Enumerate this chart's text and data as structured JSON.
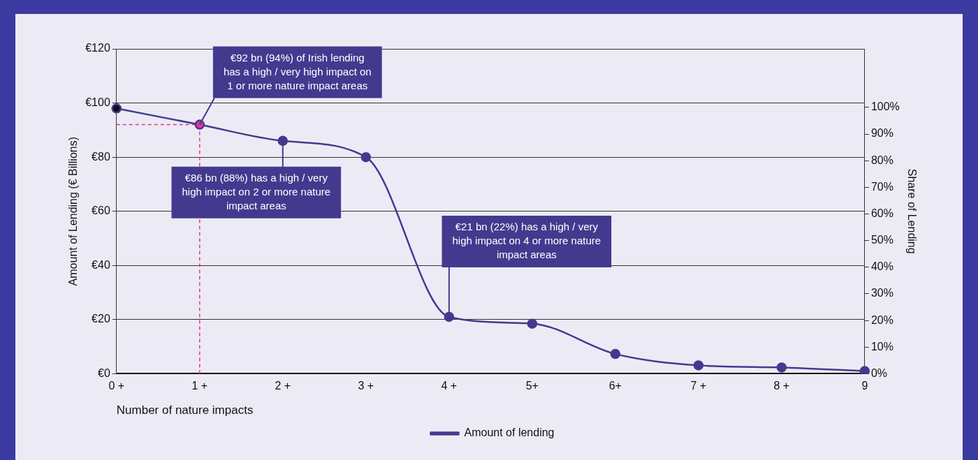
{
  "chart_data": {
    "type": "line",
    "xlabel": "Number of nature impacts",
    "ylabel": "Amount of Lending (€ Billions)",
    "y2label": "Share of Lending",
    "categories": [
      "0 +",
      "1 +",
      "2 +",
      "3 +",
      "4 +",
      "5+",
      "6+",
      "7 +",
      "8 +",
      "9"
    ],
    "series": [
      {
        "name": "Amount of lending",
        "color": "#433a8f",
        "colors": [
          "#111111",
          "#e8348a",
          "#433a8f",
          "#433a8f",
          "#433a8f",
          "#433a8f",
          "#433a8f",
          "#433a8f",
          "#433a8f",
          "#433a8f"
        ],
        "values": [
          98,
          92,
          86,
          80,
          21,
          18.5,
          7.3,
          3.1,
          2.3,
          1
        ]
      }
    ],
    "ylim": [
      0,
      120
    ],
    "yticks": [
      {
        "value": 0,
        "label": "€0"
      },
      {
        "value": 20,
        "label": "€20"
      },
      {
        "value": 40,
        "label": "€40"
      },
      {
        "value": 60,
        "label": "€60"
      },
      {
        "value": 80,
        "label": "€80"
      },
      {
        "value": 100,
        "label": "€100"
      },
      {
        "value": 120,
        "label": "€120"
      }
    ],
    "y2lim": [
      0,
      122
    ],
    "y2ticks": [
      {
        "value": 0,
        "label": "0%"
      },
      {
        "value": 10,
        "label": "10%"
      },
      {
        "value": 20,
        "label": "20%"
      },
      {
        "value": 30,
        "label": "30%"
      },
      {
        "value": 40,
        "label": "40%"
      },
      {
        "value": 50,
        "label": "50%"
      },
      {
        "value": 60,
        "label": "60%"
      },
      {
        "value": 70,
        "label": "70%"
      },
      {
        "value": 80,
        "label": "80%"
      },
      {
        "value": 90,
        "label": "90%"
      },
      {
        "value": 100,
        "label": "100%"
      }
    ],
    "ref_lines": [
      {
        "axis": "x",
        "value": "1 +",
        "color": "#e8348a",
        "line_style": "dashed"
      },
      {
        "axis": "y",
        "value": 92,
        "color": "#e8348a",
        "line_style": "dashed"
      }
    ],
    "annotations": [
      {
        "text": "€92 bn (94%) of Irish lending has a high / very high impact on 1 or more nature impact areas",
        "x": "1 +",
        "y": 92
      },
      {
        "text": "€86 bn (88%) has a high / very high impact on 2 or more nature impact areas",
        "x": "2 +",
        "y": 86
      },
      {
        "text": "€21 bn (22%) has a high / very high impact on 4 or more nature impact areas",
        "x": "4 +",
        "y": 21
      }
    ],
    "grid": "y",
    "legend": "bottom",
    "marker": "circle",
    "line_style": "solid"
  }
}
